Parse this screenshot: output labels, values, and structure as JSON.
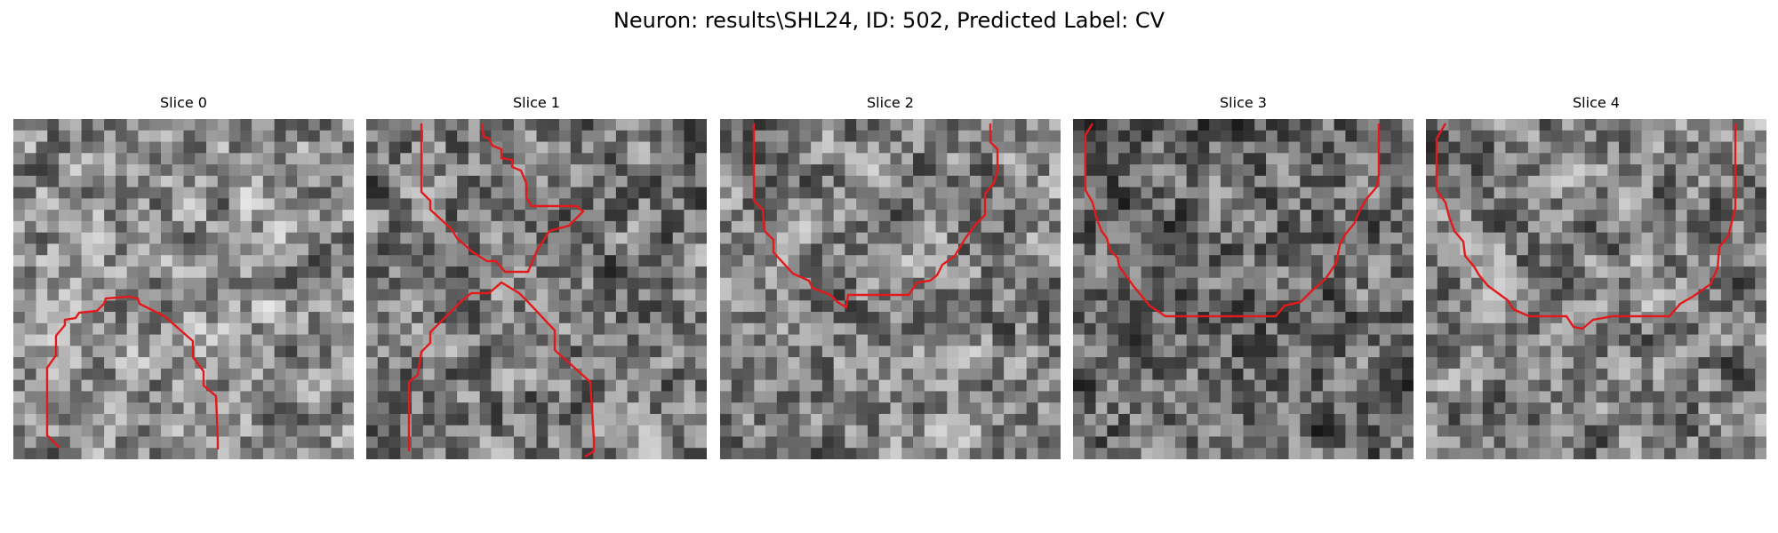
{
  "figure": {
    "title": "Neuron: results\\SHL24, ID: 502, Predicted Label: CV"
  },
  "slices": [
    {
      "title": "Slice 0",
      "seed": 11,
      "lightness": 0.55
    },
    {
      "title": "Slice 1",
      "seed": 23,
      "lightness": 0.48
    },
    {
      "title": "Slice 2",
      "seed": 37,
      "lightness": 0.5
    },
    {
      "title": "Slice 3",
      "seed": 53,
      "lightness": 0.42
    },
    {
      "title": "Slice 4",
      "seed": 71,
      "lightness": 0.5
    }
  ],
  "contour_color": "#e31a1c",
  "grid_size": 30
}
